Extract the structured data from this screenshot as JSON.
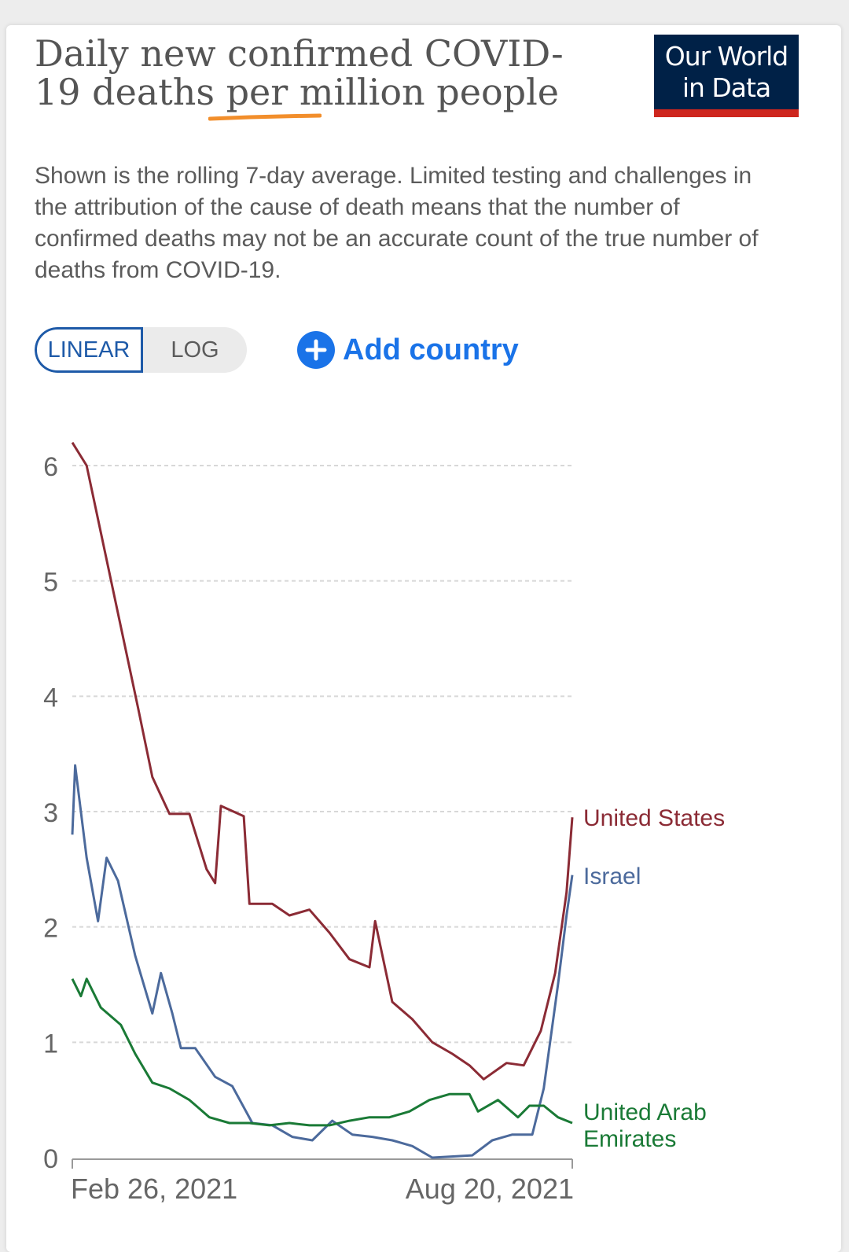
{
  "header": {
    "title": "Daily new confirmed COVID-19 deaths per million people",
    "subtitle": "Shown is the rolling 7-day average. Limited testing and challenges in the attribution of the cause of death means that the number of confirmed deaths may not be an accurate count of the true number of deaths from COVID-19.",
    "highlight_color": "#f28e2b"
  },
  "logo": {
    "line1": "Our World",
    "line2": "in Data",
    "bg": "#002147",
    "accent": "#ce261e"
  },
  "controls": {
    "linear_label": "LINEAR",
    "log_label": "LOG",
    "selected_scale": "LINEAR",
    "add_country_label": "Add country",
    "accent": "#1a73e8"
  },
  "chart_data": {
    "type": "line",
    "title": "Daily new confirmed COVID-19 deaths per million people",
    "xlabel": "",
    "ylabel": "",
    "x_range": [
      "2021-02-26",
      "2021-08-20"
    ],
    "x_tick_labels": [
      "Feb 26, 2021",
      "Aug 20, 2021"
    ],
    "ylim": [
      0,
      6
    ],
    "yticks": [
      0,
      1,
      2,
      3,
      4,
      5,
      6
    ],
    "grid": "horizontal dashed",
    "legend": "inline labels at line ends",
    "series": [
      {
        "name": "United States",
        "color": "#8b2b35",
        "points": [
          [
            "2021-02-26",
            6.2
          ],
          [
            "2021-03-03",
            6.0
          ],
          [
            "2021-03-09",
            5.3
          ],
          [
            "2021-03-15",
            4.6
          ],
          [
            "2021-03-21",
            3.9
          ],
          [
            "2021-03-26",
            3.3
          ],
          [
            "2021-04-01",
            2.98
          ],
          [
            "2021-04-08",
            2.98
          ],
          [
            "2021-04-14",
            2.5
          ],
          [
            "2021-04-17",
            2.38
          ],
          [
            "2021-04-19",
            3.05
          ],
          [
            "2021-04-27",
            2.96
          ],
          [
            "2021-04-29",
            2.2
          ],
          [
            "2021-05-07",
            2.2
          ],
          [
            "2021-05-13",
            2.1
          ],
          [
            "2021-05-20",
            2.15
          ],
          [
            "2021-05-27",
            1.95
          ],
          [
            "2021-06-03",
            1.72
          ],
          [
            "2021-06-10",
            1.65
          ],
          [
            "2021-06-12",
            2.05
          ],
          [
            "2021-06-18",
            1.35
          ],
          [
            "2021-06-25",
            1.2
          ],
          [
            "2021-07-02",
            1.0
          ],
          [
            "2021-07-09",
            0.9
          ],
          [
            "2021-07-15",
            0.8
          ],
          [
            "2021-07-20",
            0.68
          ],
          [
            "2021-07-28",
            0.82
          ],
          [
            "2021-08-03",
            0.8
          ],
          [
            "2021-08-09",
            1.1
          ],
          [
            "2021-08-14",
            1.6
          ],
          [
            "2021-08-18",
            2.3
          ],
          [
            "2021-08-20",
            2.95
          ]
        ]
      },
      {
        "name": "Israel",
        "color": "#4c6a9c",
        "points": [
          [
            "2021-02-26",
            2.8
          ],
          [
            "2021-02-27",
            3.4
          ],
          [
            "2021-03-03",
            2.6
          ],
          [
            "2021-03-07",
            2.05
          ],
          [
            "2021-03-10",
            2.6
          ],
          [
            "2021-03-14",
            2.4
          ],
          [
            "2021-03-20",
            1.75
          ],
          [
            "2021-03-26",
            1.25
          ],
          [
            "2021-03-29",
            1.6
          ],
          [
            "2021-04-02",
            1.25
          ],
          [
            "2021-04-05",
            0.95
          ],
          [
            "2021-04-10",
            0.95
          ],
          [
            "2021-04-17",
            0.7
          ],
          [
            "2021-04-23",
            0.62
          ],
          [
            "2021-04-30",
            0.3
          ],
          [
            "2021-05-07",
            0.28
          ],
          [
            "2021-05-14",
            0.18
          ],
          [
            "2021-05-21",
            0.15
          ],
          [
            "2021-05-28",
            0.32
          ],
          [
            "2021-06-04",
            0.2
          ],
          [
            "2021-06-11",
            0.18
          ],
          [
            "2021-06-18",
            0.15
          ],
          [
            "2021-06-25",
            0.1
          ],
          [
            "2021-07-02",
            0.0
          ],
          [
            "2021-07-16",
            0.02
          ],
          [
            "2021-07-23",
            0.15
          ],
          [
            "2021-07-30",
            0.2
          ],
          [
            "2021-08-06",
            0.2
          ],
          [
            "2021-08-10",
            0.6
          ],
          [
            "2021-08-15",
            1.5
          ],
          [
            "2021-08-18",
            2.1
          ],
          [
            "2021-08-20",
            2.45
          ]
        ]
      },
      {
        "name": "United Arab Emirates",
        "color": "#1a7a36",
        "points": [
          [
            "2021-02-26",
            1.55
          ],
          [
            "2021-03-01",
            1.4
          ],
          [
            "2021-03-03",
            1.55
          ],
          [
            "2021-03-08",
            1.3
          ],
          [
            "2021-03-15",
            1.15
          ],
          [
            "2021-03-20",
            0.9
          ],
          [
            "2021-03-26",
            0.65
          ],
          [
            "2021-04-01",
            0.6
          ],
          [
            "2021-04-08",
            0.5
          ],
          [
            "2021-04-15",
            0.35
          ],
          [
            "2021-04-22",
            0.3
          ],
          [
            "2021-04-29",
            0.3
          ],
          [
            "2021-05-06",
            0.28
          ],
          [
            "2021-05-13",
            0.3
          ],
          [
            "2021-05-20",
            0.28
          ],
          [
            "2021-05-27",
            0.28
          ],
          [
            "2021-06-03",
            0.32
          ],
          [
            "2021-06-10",
            0.35
          ],
          [
            "2021-06-17",
            0.35
          ],
          [
            "2021-06-24",
            0.4
          ],
          [
            "2021-07-01",
            0.5
          ],
          [
            "2021-07-08",
            0.55
          ],
          [
            "2021-07-15",
            0.55
          ],
          [
            "2021-07-18",
            0.4
          ],
          [
            "2021-07-25",
            0.5
          ],
          [
            "2021-08-01",
            0.35
          ],
          [
            "2021-08-05",
            0.45
          ],
          [
            "2021-08-10",
            0.45
          ],
          [
            "2021-08-15",
            0.35
          ],
          [
            "2021-08-20",
            0.3
          ]
        ]
      }
    ]
  }
}
